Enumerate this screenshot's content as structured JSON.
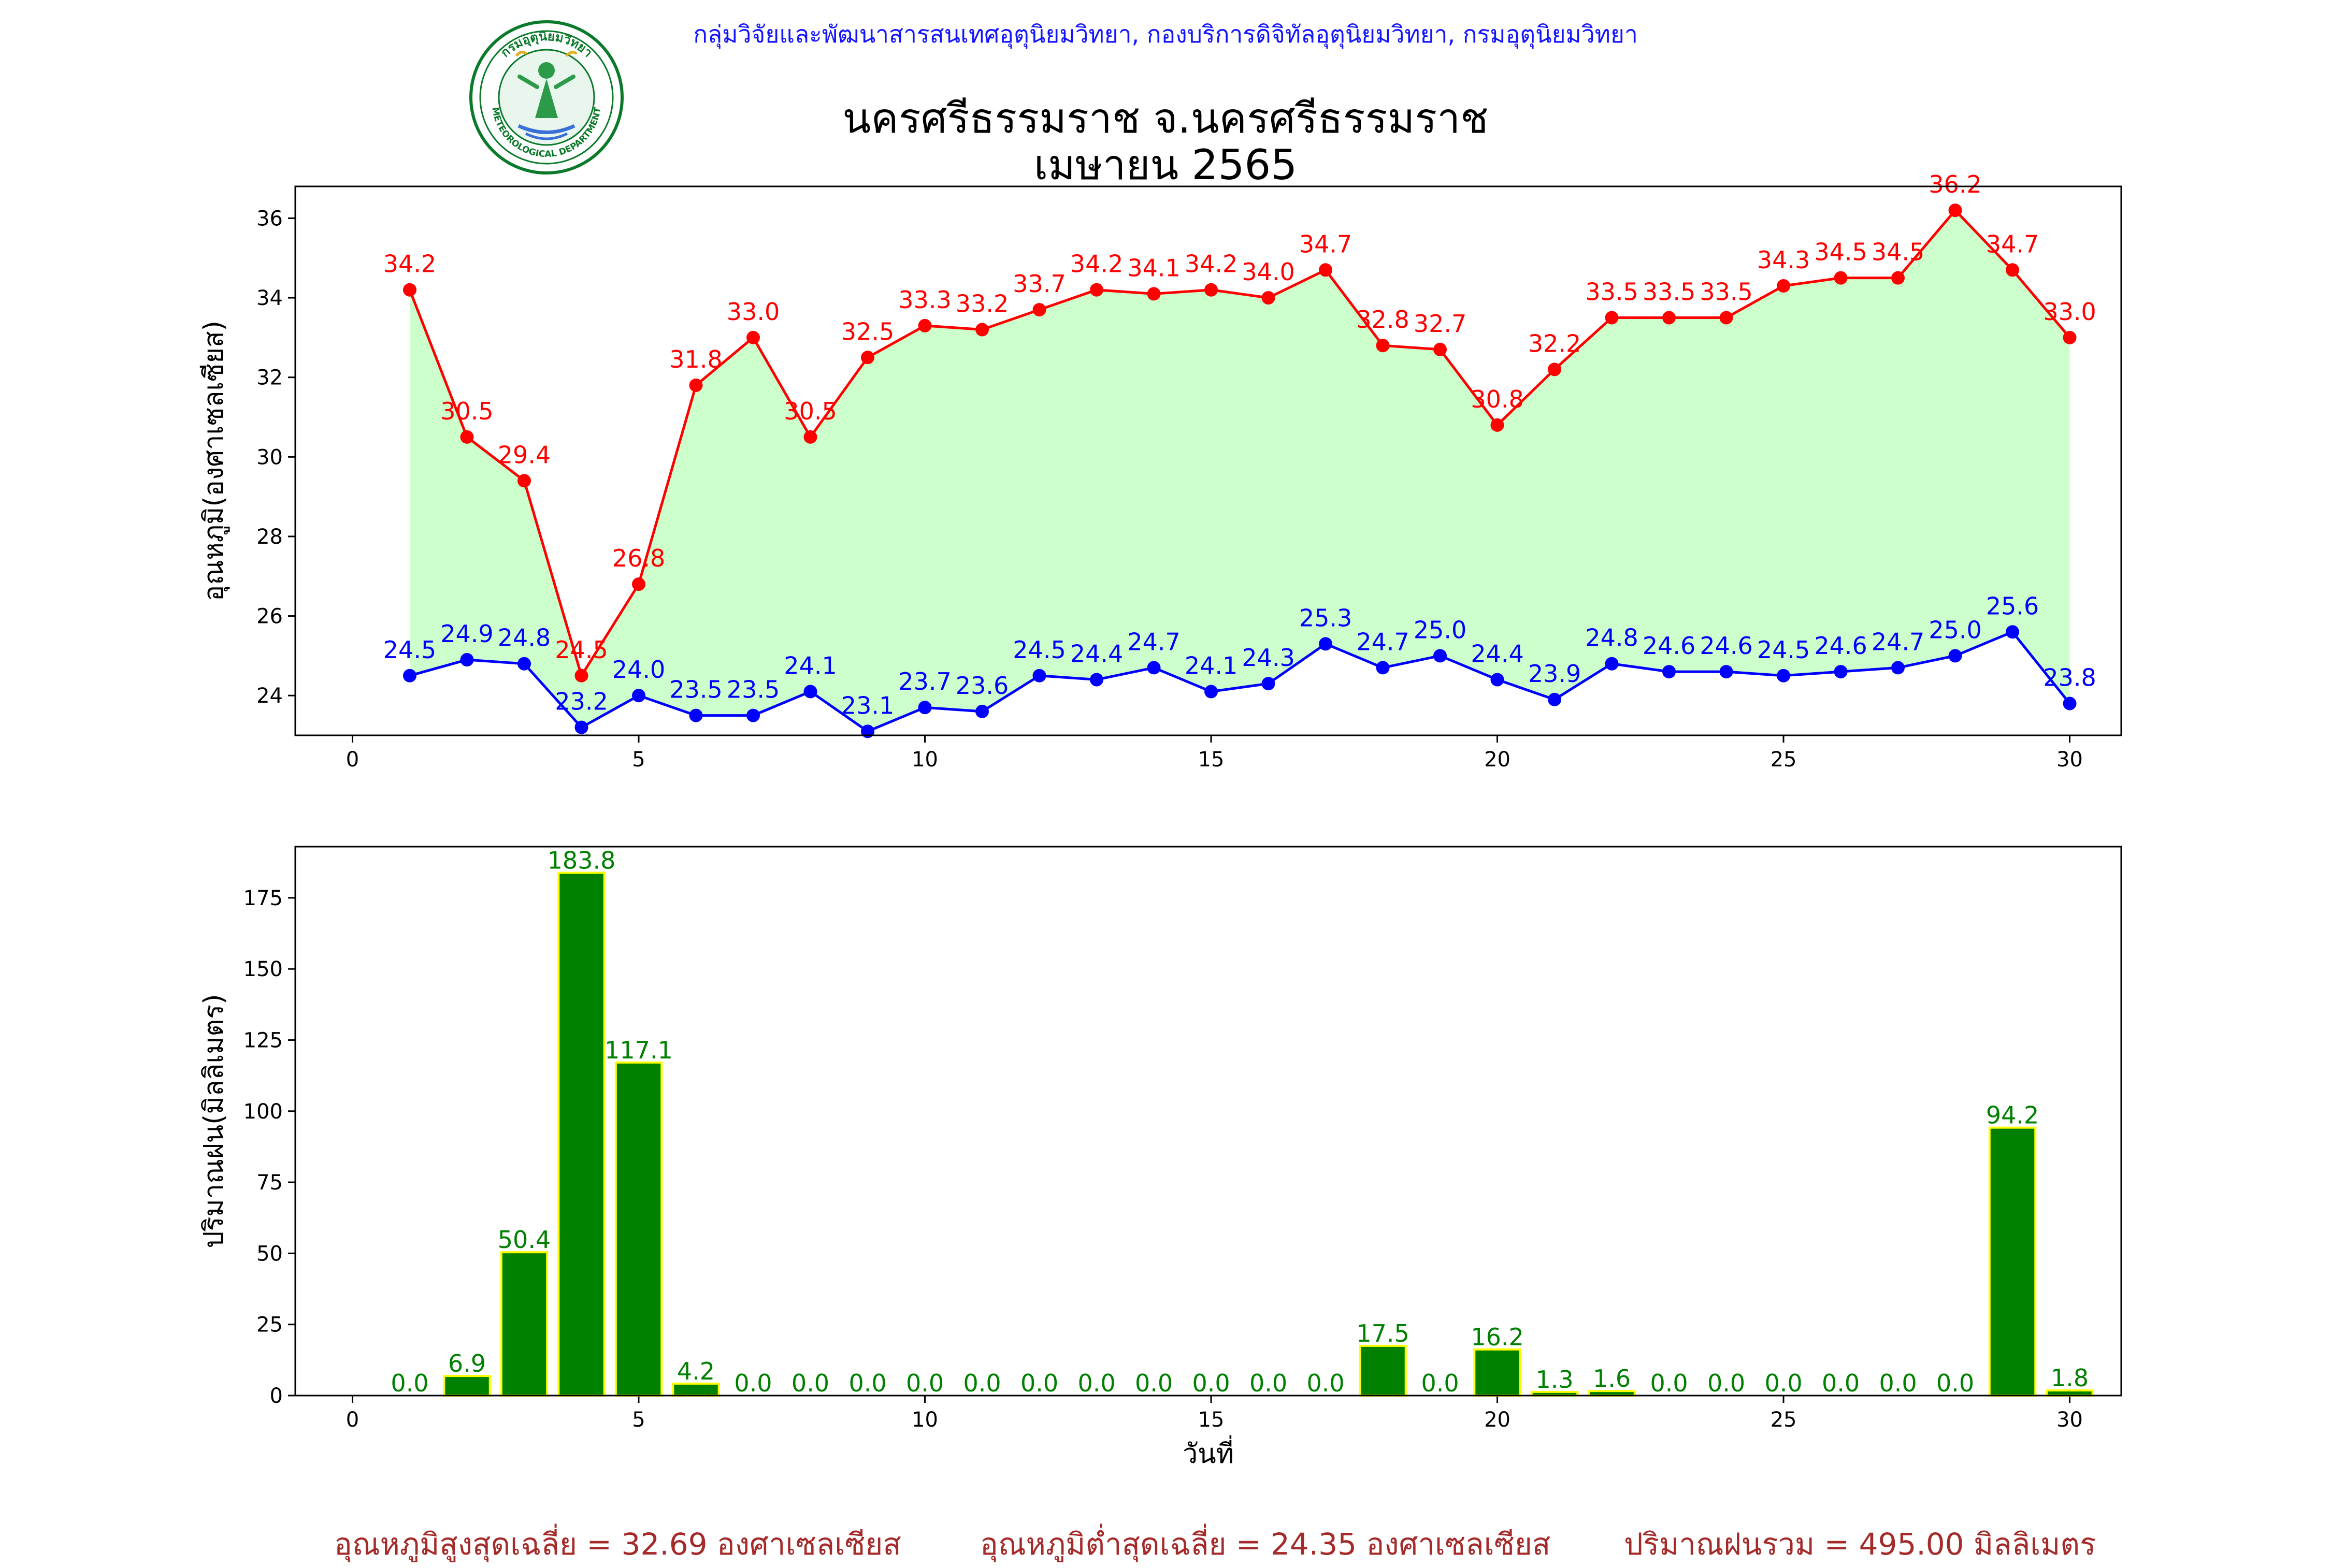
{
  "header": {
    "agency": "กลุ่มวิจัยและพัฒนาสารสนเทศอุตุนิยมวิทยา, กองบริการดิจิทัลอุตุนิยมวิทยา, กรมอุตุนิยมวิทยา",
    "title_line1": "นครศรีธรรมราช จ.นครศรีธรรมราช",
    "title_line2": "เมษายน 2565",
    "logo_text_top": "กรมอุตุนิยมวิทยา",
    "logo_text_bottom": "METEOROLOGICAL DEPARTMENT"
  },
  "summary": {
    "avg_max": "อุณหภูมิสูงสุดเฉลี่ย = 32.69 องศาเซลเซียส",
    "avg_min": "อุณหภูมิต่ำสุดเฉลี่ย = 24.35 องศาเซลเซียส",
    "total_rain": "ปริมาณฝนรวม = 495.00 มิลลิเมตร"
  },
  "colors": {
    "max_line": "#ff0000",
    "min_line": "#0000ff",
    "fill": "#ccffcc",
    "bar_fill": "#008000",
    "bar_edge": "#ffff00",
    "bar_label": "#008000",
    "agency_text": "#1414ff",
    "summary_text": "#a52a2a"
  },
  "chart_data": [
    {
      "type": "line",
      "ylabel": "อุณหภูมิ(องศาเซลเซียส)",
      "xlabel": "",
      "xlim": [
        -1,
        30.9
      ],
      "ylim": [
        23.0,
        36.8
      ],
      "xticks": [
        0,
        5,
        10,
        15,
        20,
        25,
        30
      ],
      "yticks": [
        24,
        26,
        28,
        30,
        32,
        34,
        36
      ],
      "x": [
        1,
        2,
        3,
        4,
        5,
        6,
        7,
        8,
        9,
        10,
        11,
        12,
        13,
        14,
        15,
        16,
        17,
        18,
        19,
        20,
        21,
        22,
        23,
        24,
        25,
        26,
        27,
        28,
        29,
        30
      ],
      "series": [
        {
          "key": "max",
          "values": [
            34.2,
            30.5,
            29.4,
            24.5,
            26.8,
            31.8,
            33.0,
            30.5,
            32.5,
            33.3,
            33.2,
            33.7,
            34.2,
            34.1,
            34.2,
            34.0,
            34.7,
            32.8,
            32.7,
            30.8,
            32.2,
            33.5,
            33.5,
            33.5,
            34.3,
            34.5,
            34.5,
            36.2,
            34.7,
            33.0
          ]
        },
        {
          "key": "min",
          "values": [
            24.5,
            24.9,
            24.8,
            23.2,
            24.0,
            23.5,
            23.5,
            24.1,
            23.1,
            23.7,
            23.6,
            24.5,
            24.4,
            24.7,
            24.1,
            24.3,
            25.3,
            24.7,
            25.0,
            24.4,
            23.9,
            24.8,
            24.6,
            24.6,
            24.5,
            24.6,
            24.7,
            25.0,
            25.6,
            23.8
          ]
        }
      ],
      "grid": false,
      "fill_between": true
    },
    {
      "type": "bar",
      "ylabel": "ปริมาณฝน(มิลลิเมตร)",
      "xlabel": "วันที่",
      "xlim": [
        -1,
        30.9
      ],
      "ylim": [
        0,
        193
      ],
      "xticks": [
        0,
        5,
        10,
        15,
        20,
        25,
        30
      ],
      "yticks": [
        0,
        25,
        50,
        75,
        100,
        125,
        150,
        175
      ],
      "x": [
        1,
        2,
        3,
        4,
        5,
        6,
        7,
        8,
        9,
        10,
        11,
        12,
        13,
        14,
        15,
        16,
        17,
        18,
        19,
        20,
        21,
        22,
        23,
        24,
        25,
        26,
        27,
        28,
        29,
        30
      ],
      "values": [
        0.0,
        6.9,
        50.4,
        183.8,
        117.1,
        4.2,
        0.0,
        0.0,
        0.0,
        0.0,
        0.0,
        0.0,
        0.0,
        0.0,
        0.0,
        0.0,
        0.0,
        17.5,
        0.0,
        16.2,
        1.3,
        1.6,
        0.0,
        0.0,
        0.0,
        0.0,
        0.0,
        0.0,
        94.2,
        1.8
      ],
      "grid": false
    }
  ]
}
